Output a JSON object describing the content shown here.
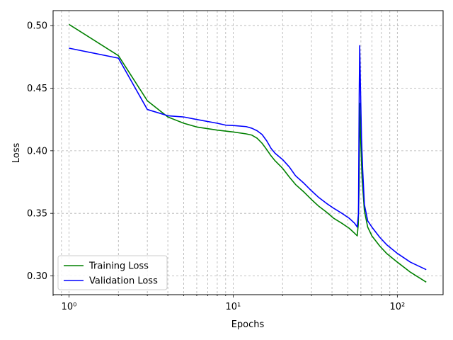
{
  "chart_data": {
    "type": "line",
    "title": "",
    "xlabel": "Epochs",
    "ylabel": "Loss",
    "xscale": "log",
    "xlim": [
      0.8,
      190
    ],
    "ylim": [
      0.285,
      0.512
    ],
    "grid": true,
    "legend_position": "lower-left",
    "x_major_ticks": [
      1,
      10,
      100
    ],
    "x_tick_labels": [
      "10⁰",
      "10¹",
      "10²"
    ],
    "y_ticks": [
      0.3,
      0.35,
      0.4,
      0.45,
      0.5
    ],
    "y_tick_labels": [
      "0.30",
      "0.35",
      "0.40",
      "0.45",
      "0.50"
    ],
    "series": [
      {
        "name": "Training Loss",
        "color": "#008000",
        "points": [
          [
            1,
            0.501
          ],
          [
            2,
            0.476
          ],
          [
            3,
            0.44
          ],
          [
            4,
            0.427
          ],
          [
            5,
            0.422
          ],
          [
            6,
            0.419
          ],
          [
            8,
            0.4165
          ],
          [
            10,
            0.415
          ],
          [
            12,
            0.4135
          ],
          [
            13,
            0.4125
          ],
          [
            14,
            0.41
          ],
          [
            15,
            0.406
          ],
          [
            16,
            0.401
          ],
          [
            17,
            0.396
          ],
          [
            18,
            0.392
          ],
          [
            20,
            0.386
          ],
          [
            22,
            0.379
          ],
          [
            24,
            0.373
          ],
          [
            27,
            0.367
          ],
          [
            30,
            0.361
          ],
          [
            33,
            0.356
          ],
          [
            37,
            0.351
          ],
          [
            41,
            0.346
          ],
          [
            46,
            0.342
          ],
          [
            51,
            0.338
          ],
          [
            55,
            0.334
          ],
          [
            57,
            0.332
          ],
          [
            57.8,
            0.341
          ],
          [
            58.5,
            0.372
          ],
          [
            59,
            0.438
          ],
          [
            59.6,
            0.415
          ],
          [
            61,
            0.378
          ],
          [
            63,
            0.352
          ],
          [
            66,
            0.339
          ],
          [
            70,
            0.332
          ],
          [
            78,
            0.324
          ],
          [
            86,
            0.318
          ],
          [
            100,
            0.311
          ],
          [
            120,
            0.303
          ],
          [
            150,
            0.295
          ]
        ]
      },
      {
        "name": "Validation Loss",
        "color": "#0000ff",
        "points": [
          [
            1,
            0.482
          ],
          [
            2,
            0.474
          ],
          [
            3,
            0.433
          ],
          [
            4,
            0.428
          ],
          [
            5,
            0.427
          ],
          [
            6,
            0.425
          ],
          [
            8,
            0.422
          ],
          [
            9,
            0.4205
          ],
          [
            10,
            0.4202
          ],
          [
            12,
            0.4193
          ],
          [
            13,
            0.418
          ],
          [
            14,
            0.416
          ],
          [
            15,
            0.413
          ],
          [
            16,
            0.408
          ],
          [
            17,
            0.402
          ],
          [
            18,
            0.398
          ],
          [
            20,
            0.393
          ],
          [
            22,
            0.387
          ],
          [
            24,
            0.38
          ],
          [
            27,
            0.374
          ],
          [
            30,
            0.368
          ],
          [
            33,
            0.363
          ],
          [
            37,
            0.358
          ],
          [
            41,
            0.354
          ],
          [
            46,
            0.35
          ],
          [
            51,
            0.346
          ],
          [
            55,
            0.342
          ],
          [
            57,
            0.339
          ],
          [
            58,
            0.35
          ],
          [
            58.6,
            0.445
          ],
          [
            59,
            0.484
          ],
          [
            59.6,
            0.452
          ],
          [
            60.5,
            0.41
          ],
          [
            61.5,
            0.385
          ],
          [
            63,
            0.357
          ],
          [
            66,
            0.344
          ],
          [
            70,
            0.339
          ],
          [
            78,
            0.331
          ],
          [
            86,
            0.325
          ],
          [
            100,
            0.318
          ],
          [
            120,
            0.311
          ],
          [
            150,
            0.305
          ]
        ]
      }
    ]
  }
}
